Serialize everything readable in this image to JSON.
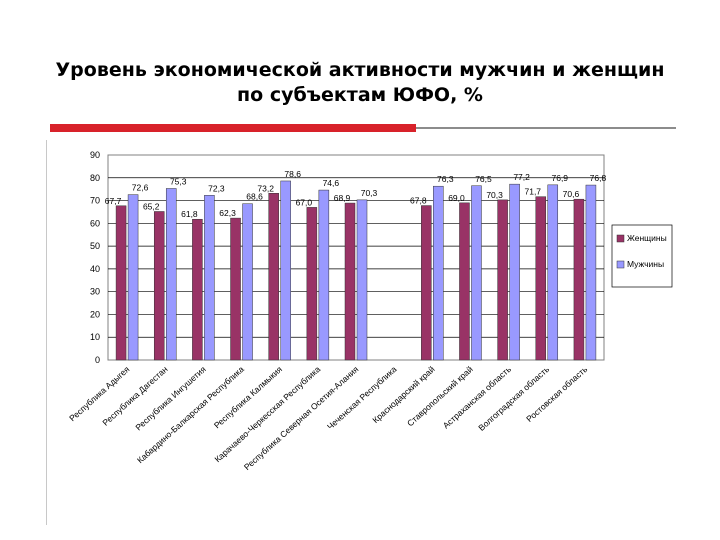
{
  "title": "Уровень экономической активности мужчин и женщин по субъектам ЮФО, %",
  "colors": {
    "women": "#993366",
    "men": "#9999ff",
    "plot_bg": "#ffffff",
    "grid": "#000000",
    "accent": "#d8222a"
  },
  "chart_data": {
    "type": "bar",
    "title": "",
    "xlabel": "",
    "ylabel": "",
    "ylim": [
      0,
      90
    ],
    "y_ticks": [
      "0",
      "10",
      "20",
      "30",
      "40",
      "50",
      "60",
      "70",
      "80",
      "90"
    ],
    "grid": true,
    "legend": "right",
    "categories": [
      "Республика Адыгея",
      "Республика Дагестан",
      "Республика Ингушетия",
      "Кабардино-Балкарская Республика",
      "Республика Калмыкия",
      "Карачаево-Черкесская Республика",
      "Республика Северная Осетия-Алания",
      "Чеченская Республика",
      "Краснодарский край",
      "Ставропольский край",
      "Астраханская область",
      "Волгоградская область",
      "Ростовская область"
    ],
    "series": [
      {
        "name": "Женщины",
        "values": [
          67.7,
          65.2,
          61.8,
          62.3,
          73.2,
          67.0,
          68.9,
          null,
          67.8,
          69.0,
          70.3,
          71.7,
          70.6
        ],
        "labels": [
          "67,7",
          "65,2",
          "61,8",
          "62,3",
          "73,2",
          "67,0",
          "68,9",
          "",
          "67,8",
          "69,0",
          "70,3",
          "71,7",
          "70,6"
        ]
      },
      {
        "name": "Мужчины",
        "values": [
          72.6,
          75.3,
          72.3,
          68.6,
          78.6,
          74.6,
          70.3,
          null,
          76.3,
          76.5,
          77.2,
          76.9,
          76.8
        ],
        "labels": [
          "72,6",
          "75,3",
          "72,3",
          "68,6",
          "78,6",
          "74,6",
          "70,3",
          "",
          "76,3",
          "76,5",
          "77,2",
          "76,9",
          "76,8"
        ]
      }
    ]
  }
}
